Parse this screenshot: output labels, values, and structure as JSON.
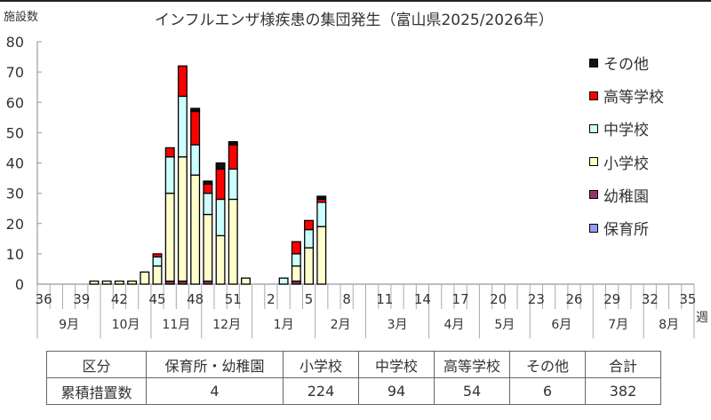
{
  "header": {
    "y_axis_unit": "施設数",
    "title": "インフルエンザ様疾患の集団発生（富山県2025/2026年）",
    "x_axis_unit": "週"
  },
  "colors": {
    "hoikusho": "#9999FF",
    "yochien": "#993366",
    "shogakko": "#FFFFCC",
    "chugakko": "#CCFFFF",
    "koto": "#FF0000",
    "sonota": "#111111"
  },
  "legend": [
    {
      "label": "その他",
      "color": "#111111"
    },
    {
      "label": "高等学校",
      "color": "#FF0000"
    },
    {
      "label": "中学校",
      "color": "#CCFFFF"
    },
    {
      "label": "小学校",
      "color": "#FFFFCC"
    },
    {
      "label": "幼稚園",
      "color": "#993366"
    },
    {
      "label": "保育所",
      "color": "#9999FF"
    }
  ],
  "chart_data": {
    "type": "bar",
    "stacked": true,
    "title": "インフルエンザ様疾患の集団発生（富山県2025/2026年）",
    "xlabel": "週",
    "ylabel": "施設数",
    "ylim": [
      0,
      80
    ],
    "yticks": [
      0,
      10,
      20,
      30,
      40,
      50,
      60,
      70,
      80
    ],
    "grid": false,
    "legend_position": "right",
    "categories": [
      36,
      37,
      38,
      39,
      40,
      41,
      42,
      43,
      44,
      45,
      46,
      47,
      48,
      49,
      50,
      51,
      52,
      1,
      2,
      3,
      4,
      5,
      6,
      7,
      8,
      9,
      10,
      11,
      12,
      13,
      14,
      15,
      16,
      17,
      18,
      19,
      20,
      21,
      22,
      23,
      24,
      25,
      26,
      27,
      28,
      29,
      30,
      31,
      32,
      33,
      34,
      35
    ],
    "tick_labels": [
      "36",
      "39",
      "42",
      "45",
      "48",
      "51",
      "2",
      "5",
      "8",
      "11",
      "14",
      "17",
      "20",
      "23",
      "26",
      "29",
      "32",
      "35"
    ],
    "months": [
      {
        "label": "9月",
        "weeks": 5
      },
      {
        "label": "10月",
        "weeks": 4
      },
      {
        "label": "11月",
        "weeks": 4
      },
      {
        "label": "12月",
        "weeks": 4
      },
      {
        "label": "1月",
        "weeks": 5
      },
      {
        "label": "2月",
        "weeks": 4
      },
      {
        "label": "3月",
        "weeks": 5
      },
      {
        "label": "4月",
        "weeks": 4
      },
      {
        "label": "5月",
        "weeks": 4
      },
      {
        "label": "6月",
        "weeks": 5
      },
      {
        "label": "7月",
        "weeks": 4
      },
      {
        "label": "8月",
        "weeks": 4
      }
    ],
    "series": [
      {
        "name": "保育所",
        "color": "#9999FF",
        "values": [
          0,
          0,
          0,
          0,
          0,
          0,
          0,
          0,
          0,
          0,
          0,
          0,
          0,
          0,
          0,
          0,
          0,
          0,
          0,
          0,
          0,
          0,
          0,
          0,
          0,
          0,
          0,
          0,
          0,
          0,
          0,
          0,
          0,
          0,
          0,
          0,
          0,
          0,
          0,
          0,
          0,
          0,
          0,
          0,
          0,
          0,
          0,
          0,
          0,
          0,
          0,
          0
        ]
      },
      {
        "name": "幼稚園",
        "color": "#993366",
        "values": [
          0,
          0,
          0,
          0,
          0,
          0,
          0,
          0,
          0,
          0,
          1,
          1,
          0,
          1,
          0,
          0,
          0,
          0,
          0,
          0,
          1,
          0,
          0,
          0,
          0,
          0,
          0,
          0,
          0,
          0,
          0,
          0,
          0,
          0,
          0,
          0,
          0,
          0,
          0,
          0,
          0,
          0,
          0,
          0,
          0,
          0,
          0,
          0,
          0,
          0,
          0,
          0
        ]
      },
      {
        "name": "小学校",
        "color": "#FFFFCC",
        "values": [
          0,
          0,
          0,
          0,
          1,
          1,
          1,
          1,
          4,
          6,
          29,
          41,
          36,
          22,
          16,
          28,
          2,
          0,
          0,
          0,
          5,
          12,
          19,
          0,
          0,
          0,
          0,
          0,
          0,
          0,
          0,
          0,
          0,
          0,
          0,
          0,
          0,
          0,
          0,
          0,
          0,
          0,
          0,
          0,
          0,
          0,
          0,
          0,
          0,
          0,
          0,
          0
        ]
      },
      {
        "name": "中学校",
        "color": "#CCFFFF",
        "values": [
          0,
          0,
          0,
          0,
          0,
          0,
          0,
          0,
          0,
          3,
          12,
          20,
          10,
          7,
          12,
          10,
          0,
          0,
          0,
          2,
          4,
          6,
          8,
          0,
          0,
          0,
          0,
          0,
          0,
          0,
          0,
          0,
          0,
          0,
          0,
          0,
          0,
          0,
          0,
          0,
          0,
          0,
          0,
          0,
          0,
          0,
          0,
          0,
          0,
          0,
          0,
          0
        ]
      },
      {
        "name": "高等学校",
        "color": "#FF0000",
        "values": [
          0,
          0,
          0,
          0,
          0,
          0,
          0,
          0,
          0,
          1,
          3,
          10,
          11,
          3,
          10,
          8,
          0,
          0,
          0,
          0,
          4,
          3,
          1,
          0,
          0,
          0,
          0,
          0,
          0,
          0,
          0,
          0,
          0,
          0,
          0,
          0,
          0,
          0,
          0,
          0,
          0,
          0,
          0,
          0,
          0,
          0,
          0,
          0,
          0,
          0,
          0,
          0
        ]
      },
      {
        "name": "その他",
        "color": "#111111",
        "values": [
          0,
          0,
          0,
          0,
          0,
          0,
          0,
          0,
          0,
          0,
          0,
          0,
          1,
          1,
          2,
          1,
          0,
          0,
          0,
          0,
          0,
          0,
          1,
          0,
          0,
          0,
          0,
          0,
          0,
          0,
          0,
          0,
          0,
          0,
          0,
          0,
          0,
          0,
          0,
          0,
          0,
          0,
          0,
          0,
          0,
          0,
          0,
          0,
          0,
          0,
          0,
          0
        ]
      }
    ]
  },
  "summary_table": {
    "headers": [
      "区分",
      "保育所・幼稚園",
      "小学校",
      "中学校",
      "高等学校",
      "その他",
      "合計"
    ],
    "row": [
      "累積措置数",
      "4",
      "224",
      "94",
      "54",
      "6",
      "382"
    ]
  }
}
